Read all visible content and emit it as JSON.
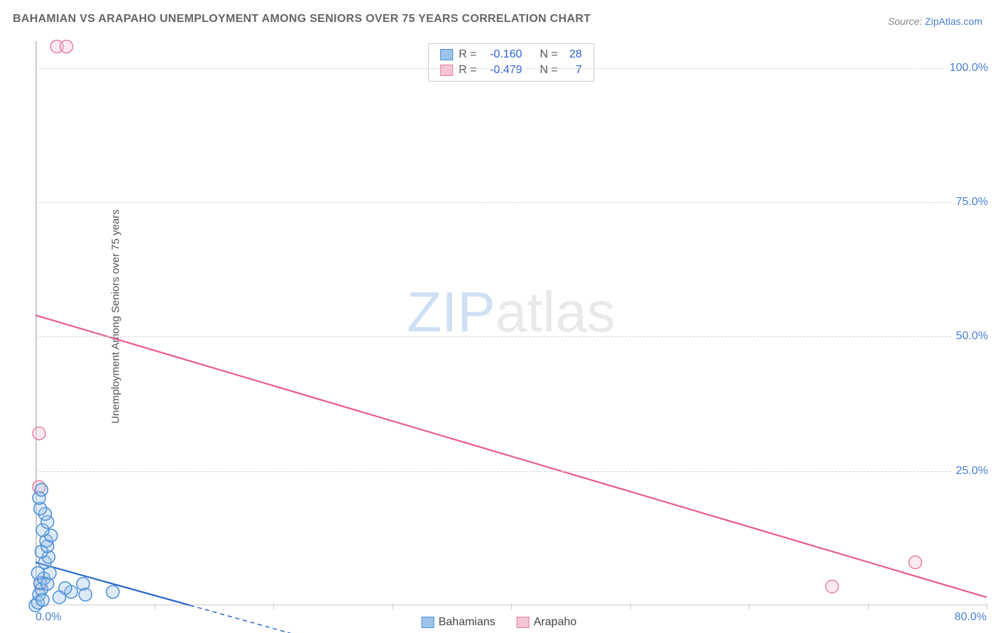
{
  "title": "BAHAMIAN VS ARAPAHO UNEMPLOYMENT AMONG SENIORS OVER 75 YEARS CORRELATION CHART",
  "source": {
    "label": "Source: ",
    "link": "ZipAtlas.com"
  },
  "y_axis_title": "Unemployment Among Seniors over 75 years",
  "watermark": {
    "part1": "ZIP",
    "part2": "atlas"
  },
  "chart": {
    "type": "scatter-with-regression",
    "background_color": "#ffffff",
    "grid_color": "#d5d5d5",
    "axis_color": "#cccccc",
    "tick_label_color": "#4a7fd0",
    "tick_fontsize": 16,
    "x_range": [
      0,
      80
    ],
    "y_range": [
      0,
      105
    ],
    "y_ticks": [
      25.0,
      50.0,
      75.0,
      100.0
    ],
    "y_tick_labels": [
      "25.0%",
      "50.0%",
      "75.0%",
      "100.0%"
    ],
    "x_ticks": [
      0,
      10,
      20,
      30,
      40,
      50,
      60,
      70,
      80
    ],
    "x_tick_labels_shown": {
      "0": "0.0%",
      "80": "80.0%"
    },
    "point_radius": 9,
    "point_stroke_width": 1.5,
    "point_fill_opacity": 0.35,
    "line_width": 2.2
  },
  "series": {
    "bahamians": {
      "label": "Bahamians",
      "color_fill": "#9ec4ea",
      "color_stroke": "#4a8fd8",
      "line_color": "#2a66c8",
      "points": [
        [
          0.0,
          0.0
        ],
        [
          0.2,
          0.5
        ],
        [
          0.3,
          2.0
        ],
        [
          0.5,
          3.0
        ],
        [
          0.6,
          1.0
        ],
        [
          0.4,
          4.2
        ],
        [
          0.7,
          5.0
        ],
        [
          1.0,
          4.0
        ],
        [
          1.2,
          6.0
        ],
        [
          0.8,
          8.0
        ],
        [
          1.1,
          9.0
        ],
        [
          0.5,
          10.0
        ],
        [
          1.0,
          11.0
        ],
        [
          0.9,
          12.0
        ],
        [
          1.3,
          13.0
        ],
        [
          0.6,
          14.0
        ],
        [
          1.0,
          15.5
        ],
        [
          0.8,
          17.0
        ],
        [
          0.4,
          18.0
        ],
        [
          0.3,
          20.0
        ],
        [
          0.5,
          21.5
        ],
        [
          3.0,
          2.5
        ],
        [
          2.5,
          3.2
        ],
        [
          2.0,
          1.5
        ],
        [
          4.0,
          4.0
        ],
        [
          4.2,
          2.0
        ],
        [
          6.5,
          2.5
        ],
        [
          0.2,
          6.0
        ]
      ],
      "regression": {
        "x1": 0,
        "y1": 8.0,
        "x2": 13.0,
        "y2": 0.0,
        "dashed_ext": true
      }
    },
    "arapaho": {
      "label": "Arapaho",
      "color_fill": "#f6c4d2",
      "color_stroke": "#e87fa6",
      "line_color": "#e85b8f",
      "points": [
        [
          1.8,
          104.0
        ],
        [
          2.6,
          104.0
        ],
        [
          0.3,
          32.0
        ],
        [
          0.3,
          22.0
        ],
        [
          67.0,
          3.5
        ],
        [
          74.0,
          8.0
        ],
        [
          0.4,
          4.0
        ]
      ],
      "regression": {
        "x1": 0,
        "y1": 54.0,
        "x2": 80.0,
        "y2": 1.5,
        "dashed_ext": false
      }
    }
  },
  "stats": [
    {
      "series": "bahamians",
      "R": "-0.160",
      "N": "28"
    },
    {
      "series": "arapaho",
      "R": "-0.479",
      "N": "7"
    }
  ],
  "legend_bottom": [
    {
      "series": "bahamians",
      "label": "Bahamians"
    },
    {
      "series": "arapaho",
      "label": "Arapaho"
    }
  ]
}
